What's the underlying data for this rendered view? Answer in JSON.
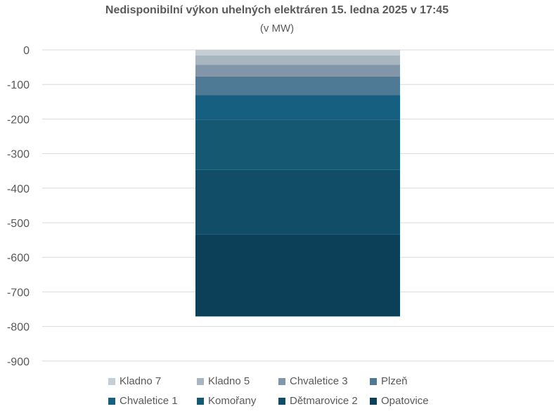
{
  "chart_data": {
    "type": "bar",
    "stacked": true,
    "title": "Nedisponibilní výkon uhelných elektráren 15. ledna 2025 v 17:45",
    "subtitle": "(v MW)",
    "xlabel": "",
    "ylabel": "",
    "ylim": [
      -900,
      0
    ],
    "yticks": [
      0,
      -100,
      -200,
      -300,
      -400,
      -500,
      -600,
      -700,
      -800,
      -900
    ],
    "grid": true,
    "legend_position": "bottom",
    "series": [
      {
        "name": "Kladno 7",
        "value": -16,
        "color": "#c5ced6"
      },
      {
        "name": "Kladno 5",
        "value": -27,
        "color": "#a8b6c2"
      },
      {
        "name": "Chvaletice 3",
        "value": -34,
        "color": "#8196a8"
      },
      {
        "name": "Plzeň",
        "value": -54,
        "color": "#4e7a95"
      },
      {
        "name": "Chvaletice 1",
        "value": -72,
        "color": "#165f80"
      },
      {
        "name": "Komořany",
        "value": -144,
        "color": "#155872"
      },
      {
        "name": "Dětmarovice 2",
        "value": -186,
        "color": "#124d68"
      },
      {
        "name": "Opatovice",
        "value": -238,
        "color": "#0c3f58"
      }
    ]
  }
}
